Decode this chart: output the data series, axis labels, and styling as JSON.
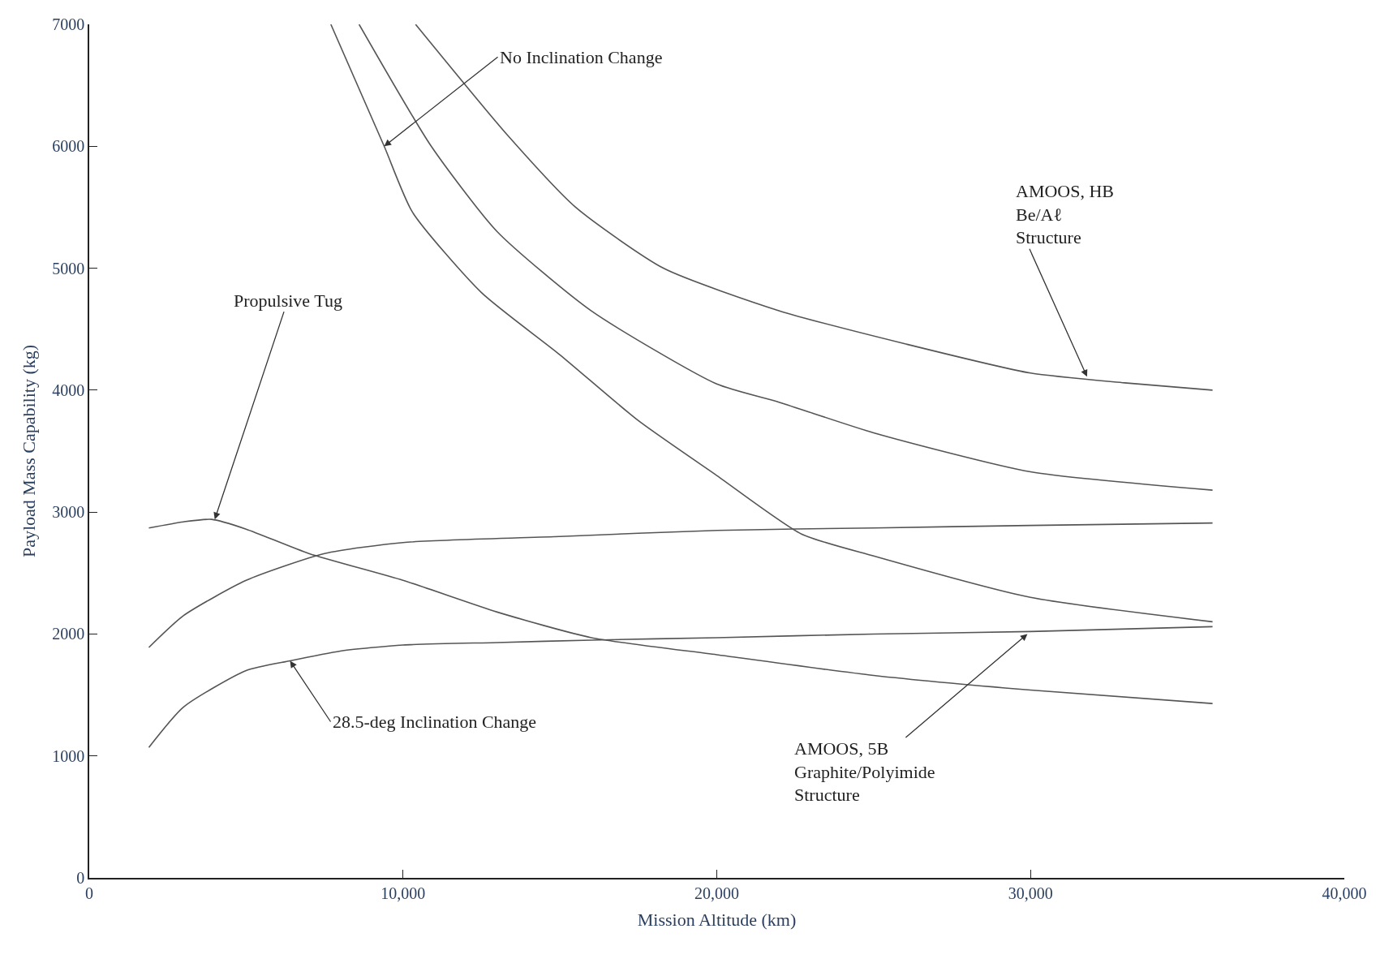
{
  "chart_data": {
    "type": "line",
    "xlabel": "Mission Altitude (km)",
    "ylabel": "Payload Mass Capability (kg)",
    "xlim": [
      0,
      40000
    ],
    "ylim": [
      0,
      7000
    ],
    "xticks": [
      0,
      {
        "value": 10000,
        "label": "10,000"
      },
      {
        "value": 20000,
        "label": "20,000"
      },
      {
        "value": 30000,
        "label": "30,000"
      },
      {
        "value": 40000,
        "label": "40,000"
      }
    ],
    "yticks": [
      0,
      1000,
      2000,
      3000,
      4000,
      5000,
      6000,
      7000
    ],
    "marker": "none",
    "line_style": "solid",
    "series": [
      {
        "color": "#555555",
        "x": [
          7700,
          9400,
          10300,
          12500,
          15000,
          17500,
          20000,
          22700,
          25000,
          30000,
          35800
        ],
        "values": [
          7000,
          6000,
          5460,
          4800,
          4290,
          3750,
          3300,
          2820,
          2640,
          2300,
          2100
        ]
      },
      {
        "color": "#555555",
        "x": [
          8600,
          10900,
          13000,
          16000,
          20000,
          22000,
          25000,
          30000,
          35800
        ],
        "values": [
          7000,
          6000,
          5300,
          4650,
          4050,
          3900,
          3650,
          3330,
          3180
        ]
      },
      {
        "color": "#555555",
        "x": [
          10400,
          13300,
          15500,
          18300,
          22000,
          26000,
          30000,
          33000,
          35800
        ],
        "values": [
          7000,
          6100,
          5500,
          5000,
          4650,
          4380,
          4140,
          4060,
          4000
        ]
      },
      {
        "color": "#555555",
        "x": [
          1900,
          3000,
          5000,
          7500,
          10000,
          15000,
          20000,
          25000,
          30000,
          35800
        ],
        "values": [
          1890,
          2150,
          2440,
          2660,
          2750,
          2800,
          2850,
          2870,
          2890,
          2910
        ]
      },
      {
        "color": "#555555",
        "x": [
          1900,
          3000,
          5000,
          6400,
          8000,
          10000,
          13000,
          16000,
          20000,
          25000,
          30000,
          35800
        ],
        "values": [
          1070,
          1400,
          1700,
          1780,
          1860,
          1910,
          1930,
          1950,
          1970,
          2000,
          2020,
          2060
        ]
      },
      {
        "color": "#555555",
        "x": [
          1900,
          3000,
          3900,
          5000,
          7000,
          10000,
          13000,
          16000,
          20000,
          25000,
          30000,
          35800
        ],
        "values": [
          2870,
          2920,
          2940,
          2860,
          2660,
          2440,
          2180,
          1970,
          1830,
          1660,
          1540,
          1430
        ]
      }
    ],
    "annotations": [
      {
        "text": "No Inclination Change",
        "x": 9400,
        "y": 6000
      },
      {
        "text": "Propulsive Tug",
        "x": 4000,
        "y": 2940
      },
      {
        "text": "AMOOS, HB\nBe/Aℓ\nStructure",
        "x": 31800,
        "y": 4110
      },
      {
        "text": "28.5-deg Inclination Change",
        "x": 6400,
        "y": 1780
      },
      {
        "text": "AMOOS, 5B\nGraphite/Polyimide\nStructure",
        "x": 29900,
        "y": 2000
      }
    ]
  }
}
